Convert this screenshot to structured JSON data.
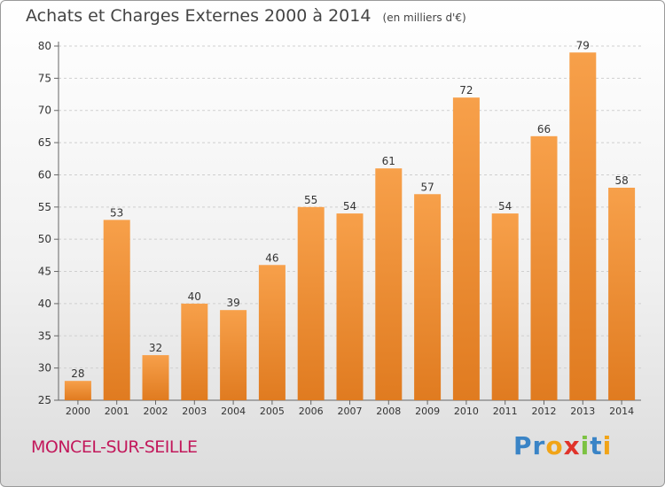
{
  "header": {
    "title": "Achats et Charges Externes 2000 à 2014",
    "subtitle": "(en milliers d'€)"
  },
  "footer": {
    "city": "MONCEL-SUR-SEILLE",
    "logo_text": "Proxiti"
  },
  "colors": {
    "bar_light": "#f7a04a",
    "bar_dark": "#e07b20",
    "city_text": "#c2185b",
    "logo_letters": [
      "#3a84c6",
      "#3a84c6",
      "#f1a417",
      "#e0332a",
      "#7cc242",
      "#3a84c6",
      "#f1a417"
    ]
  },
  "chart_data": {
    "type": "bar",
    "title": "Achats et Charges Externes 2000 à 2014",
    "subtitle": "(en milliers d'€)",
    "categories": [
      "2000",
      "2001",
      "2002",
      "2003",
      "2004",
      "2005",
      "2006",
      "2007",
      "2008",
      "2009",
      "2010",
      "2011",
      "2012",
      "2013",
      "2014"
    ],
    "values": [
      28,
      53,
      32,
      40,
      39,
      46,
      55,
      54,
      61,
      57,
      72,
      54,
      66,
      79,
      58
    ],
    "ylim": [
      25,
      80
    ],
    "yticks": [
      25,
      30,
      35,
      40,
      45,
      50,
      55,
      60,
      65,
      70,
      75,
      80
    ],
    "grid": true,
    "data_labels": true
  }
}
